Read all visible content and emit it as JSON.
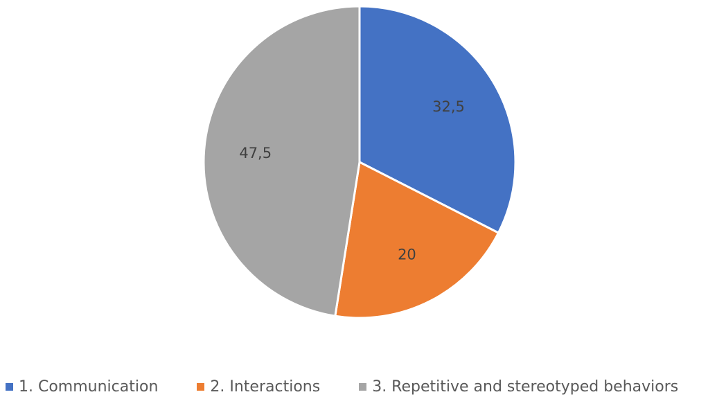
{
  "chart_data": {
    "type": "pie",
    "title": "",
    "categories": [
      "1. Communication",
      "2. Interactions",
      "3. Repetitive and stereotyped behaviors"
    ],
    "values": [
      32.5,
      20,
      47.5
    ],
    "data_labels": [
      "32,5",
      "20",
      "47,5"
    ],
    "colors": [
      "#4472C4",
      "#ED7D31",
      "#A5A5A5"
    ],
    "legend_position": "bottom",
    "start_angle": "12 o'clock, clockwise"
  }
}
